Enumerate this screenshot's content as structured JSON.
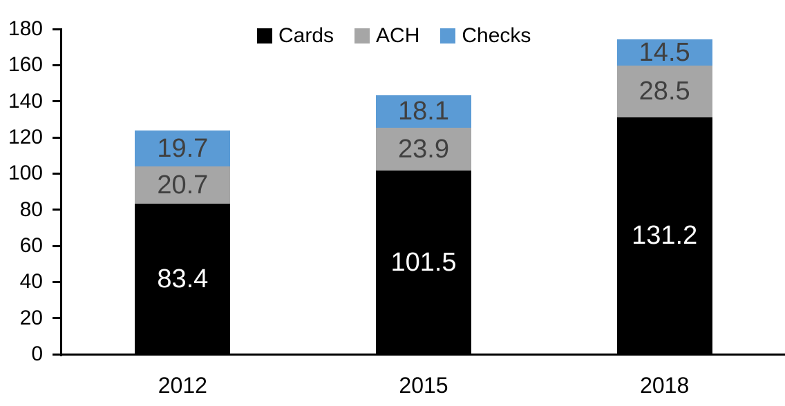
{
  "chart_data": {
    "type": "bar",
    "stacked": true,
    "categories": [
      "2012",
      "2015",
      "2018"
    ],
    "series": [
      {
        "name": "Cards",
        "values": [
          83.4,
          101.5,
          131.2
        ],
        "color": "#000000",
        "label_color": "#FFFFFF"
      },
      {
        "name": "ACH",
        "values": [
          20.7,
          23.9,
          28.5
        ],
        "color": "#A6A6A6",
        "label_color": "#404040"
      },
      {
        "name": "Checks",
        "values": [
          19.7,
          18.1,
          14.5
        ],
        "color": "#5B9BD5",
        "label_color": "#404040"
      }
    ],
    "data_labels": [
      "83.4",
      "101.5",
      "131.2",
      "20.7",
      "23.9",
      "28.5",
      "19.7",
      "18.1",
      "14.5"
    ],
    "y_axis": {
      "min": 0,
      "max": 180,
      "tick_step": 20,
      "tick_labels": [
        "0",
        "20",
        "40",
        "60",
        "80",
        "100",
        "120",
        "140",
        "160",
        "180"
      ]
    },
    "legend": {
      "position": "top",
      "entries": [
        "Cards",
        "ACH",
        "Checks"
      ]
    },
    "grid": false,
    "axis_color": "#000000",
    "background": "#FFFFFF",
    "title": "",
    "xlabel": "",
    "ylabel": ""
  }
}
